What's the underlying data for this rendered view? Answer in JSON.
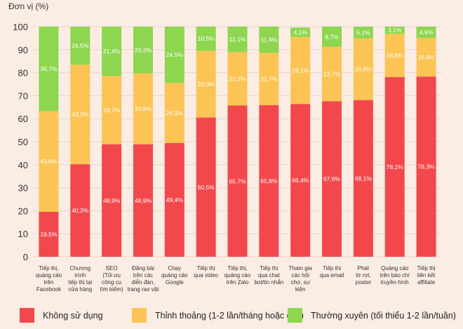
{
  "chart_data": {
    "type": "bar",
    "stacked": true,
    "ylabel": "Đơn vị (%)",
    "ylim": [
      0,
      100
    ],
    "yticks": [
      0,
      10,
      20,
      30,
      40,
      50,
      60,
      70,
      80,
      90,
      100
    ],
    "grid": true,
    "legend_position": "bottom",
    "categories": [
      [
        "Tiếp thị,",
        "quảng cáo",
        "trên",
        "Facebook"
      ],
      [
        "Chương",
        "trình",
        "tiếp thị tại",
        "cửa hàng"
      ],
      [
        "SEO",
        "(Tối ưu",
        "công cụ",
        "tìm kiếm)"
      ],
      [
        "Đăng bài",
        "trên các",
        "diễn đàn,",
        "trang rao vặt"
      ],
      [
        "Chạy",
        "quảng cáo",
        "Google"
      ],
      [
        "Tiếp thị",
        "qua video"
      ],
      [
        "Tiếp thị,",
        "quảng cáo",
        "trên Zalo"
      ],
      [
        "Tiếp thị",
        "qua chat",
        "bot/tin nhắn"
      ],
      [
        "Tham gia",
        "các hội",
        "chợ, sự",
        "kiện"
      ],
      [
        "Tiếp thị",
        "qua email"
      ],
      [
        "Phát",
        "tờ rơi,",
        "poster"
      ],
      [
        "Quảng cáo",
        "trên báo chí",
        "truyền hình"
      ],
      [
        "Tiếp thị",
        "liên kết",
        "affiliate"
      ]
    ],
    "series": [
      {
        "name": "Không sử dụng",
        "color": "#f2484c",
        "values": [
          19.5,
          40.2,
          48.9,
          48.9,
          49.4,
          60.5,
          65.7,
          65.9,
          66.4,
          67.6,
          68.1,
          78.1,
          78.3
        ],
        "labels": [
          "19,5%",
          "40,2%",
          "48,9%",
          "48,9%",
          "49,4%",
          "60,5%",
          "65,7%",
          "65,9%",
          "66,4%",
          "67,6%",
          "68,1%",
          "78,1%",
          "78,3%"
        ]
      },
      {
        "name": "Thỉnh thoảng (1-2 lần/tháng hoặc quý)",
        "color": "#fbc454",
        "values": [
          43.8,
          43.3,
          29.7,
          30.8,
          26.1,
          29.0,
          23.2,
          22.7,
          29.1,
          23.7,
          26.8,
          18.8,
          16.8
        ],
        "labels": [
          "43,8%",
          "43,3%",
          "29,7%",
          "30,8%",
          "26,1%",
          "29,0%",
          "23,2%",
          "22,7%",
          "29,1%",
          "23,7%",
          "26,8%",
          "18,8%",
          "16,8%"
        ]
      },
      {
        "name": "Thường xuyên (tối thiểu 1-2 lần/tuần)",
        "color": "#8ed650",
        "values": [
          36.7,
          16.5,
          21.4,
          20.3,
          24.5,
          10.5,
          11.1,
          11.4,
          4.1,
          8.7,
          5.1,
          3.1,
          4.9
        ],
        "labels": [
          "36,7%",
          "16,5%",
          "21,4%",
          "20,3%",
          "24,5%",
          "10,5%",
          "11,1%",
          "11,4%",
          "4,1%",
          "8,7%",
          "5,1%",
          "3,1%",
          "4,9%"
        ]
      }
    ]
  }
}
